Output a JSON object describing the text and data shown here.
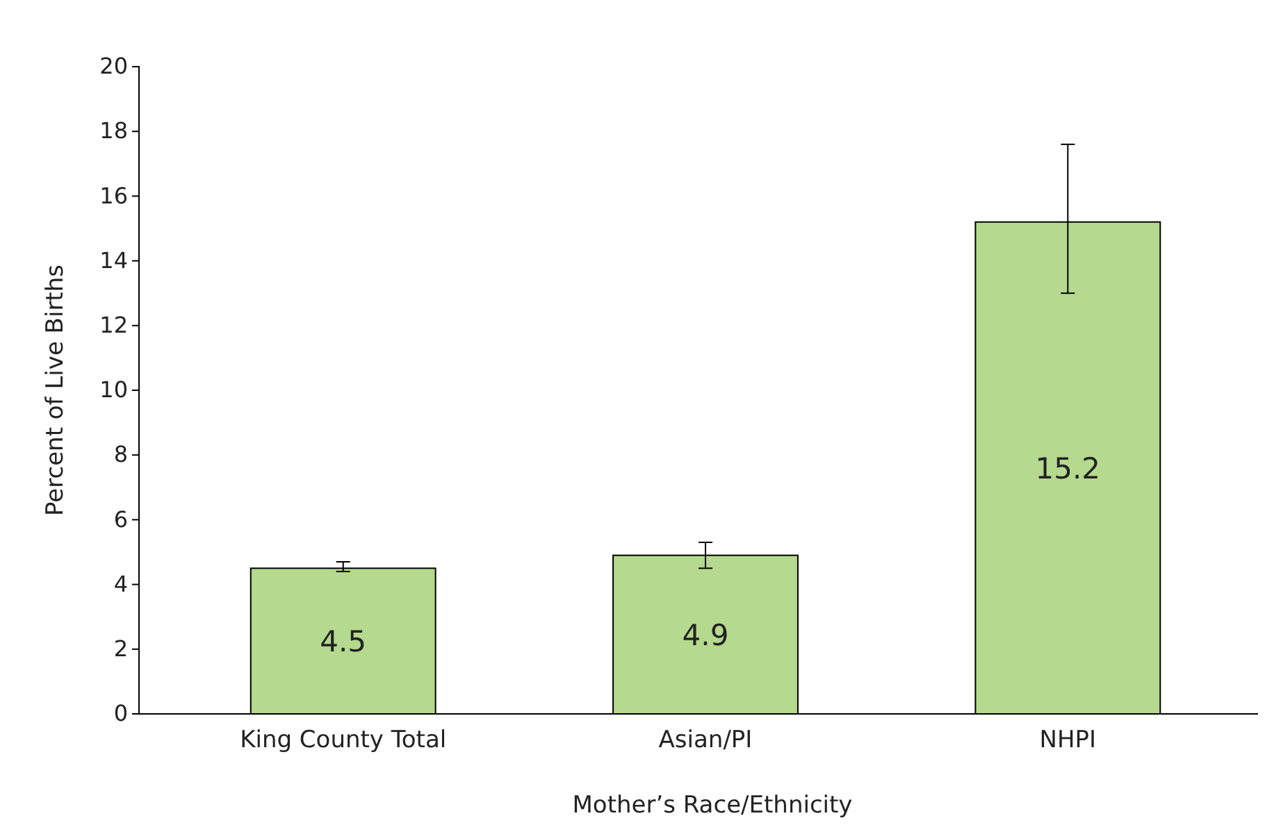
{
  "chart_data": {
    "type": "bar",
    "xlabel": "Mother’s Race/Ethnicity",
    "ylabel": "Percent of Live Births",
    "categories": [
      "King County Total",
      "Asian/PI",
      "NHPI"
    ],
    "values": [
      4.5,
      4.9,
      15.2
    ],
    "color": "#b5d98e",
    "errors": [
      [
        4.4,
        4.7
      ],
      [
        4.5,
        5.3
      ],
      [
        13.0,
        17.6
      ]
    ],
    "ylim": [
      0,
      20
    ],
    "yticks": [
      0,
      2,
      4,
      6,
      8,
      10,
      12,
      14,
      16,
      18,
      20
    ],
    "data_labels": true
  }
}
